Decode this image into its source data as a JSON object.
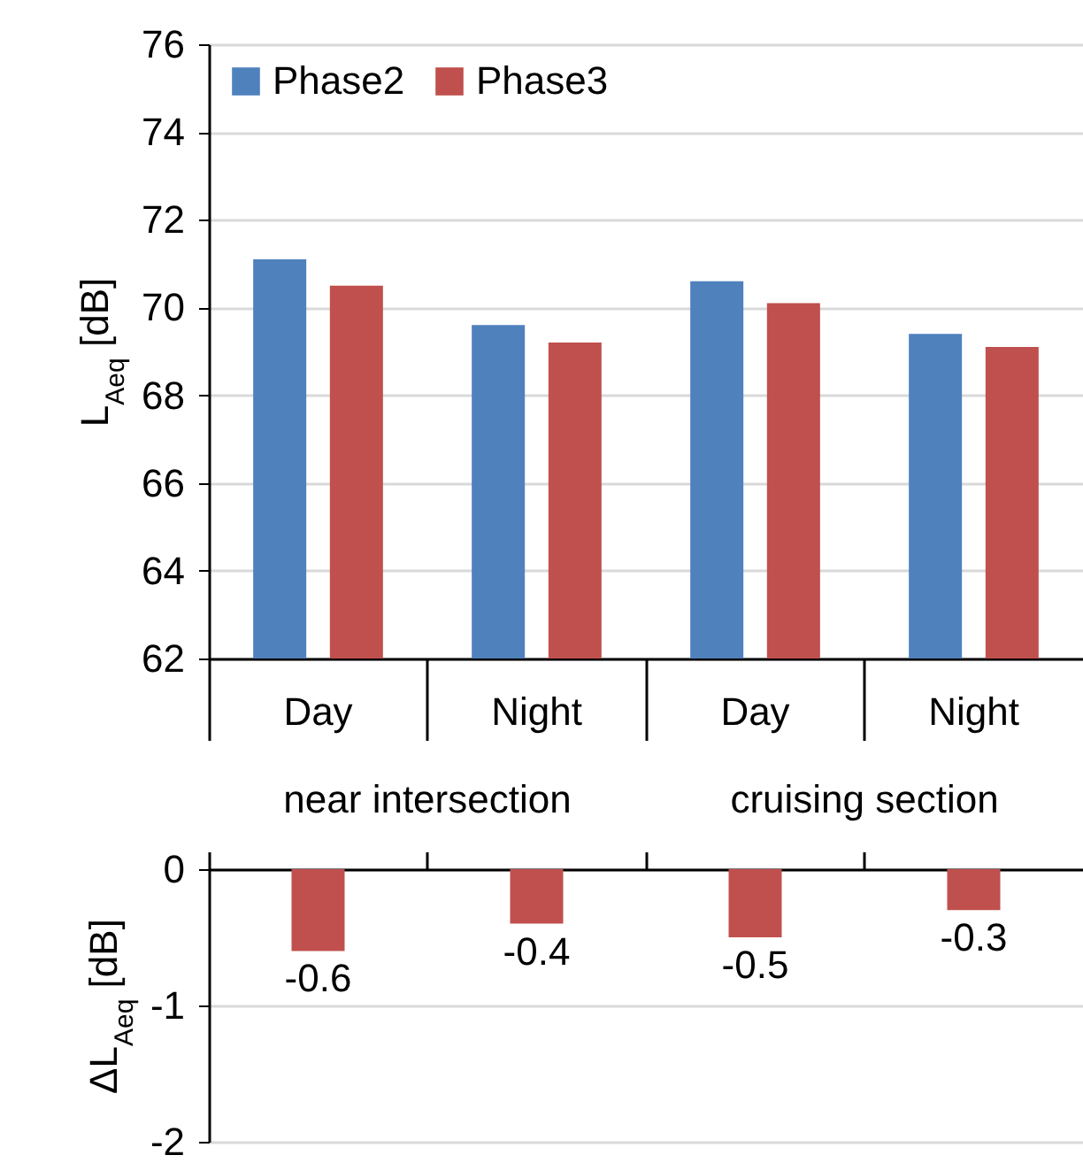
{
  "chart_data": [
    {
      "type": "bar",
      "ylabel": "L$_{Aeq}$ [dB]",
      "categories": [
        "Day",
        "Night",
        "Day",
        "Night"
      ],
      "annotations": [
        "near intersection",
        "cruising section"
      ],
      "series": [
        {
          "name": "Phase2",
          "color": "#4f81bd",
          "values": [
            71.1,
            69.6,
            70.6,
            69.4
          ]
        },
        {
          "name": "Phase3",
          "color": "#c0504d",
          "values": [
            70.5,
            69.2,
            70.1,
            69.1
          ]
        }
      ],
      "ylim": [
        62,
        76
      ],
      "yticks": [
        62,
        64,
        66,
        68,
        70,
        72,
        74,
        76
      ],
      "grid": "y",
      "legend": "top left"
    },
    {
      "type": "bar",
      "ylabel": "ΔL$_{Aeq}$ [dB]",
      "categories": [
        null,
        null,
        null,
        null
      ],
      "values": [
        -0.6,
        -0.4,
        -0.5,
        -0.3
      ],
      "color": "#c0504d",
      "ylim": [
        -2,
        0
      ],
      "yticks": [
        -2,
        -1,
        0
      ],
      "grid": "y",
      "data_labels": true,
      "tick_labels": "y"
    }
  ]
}
